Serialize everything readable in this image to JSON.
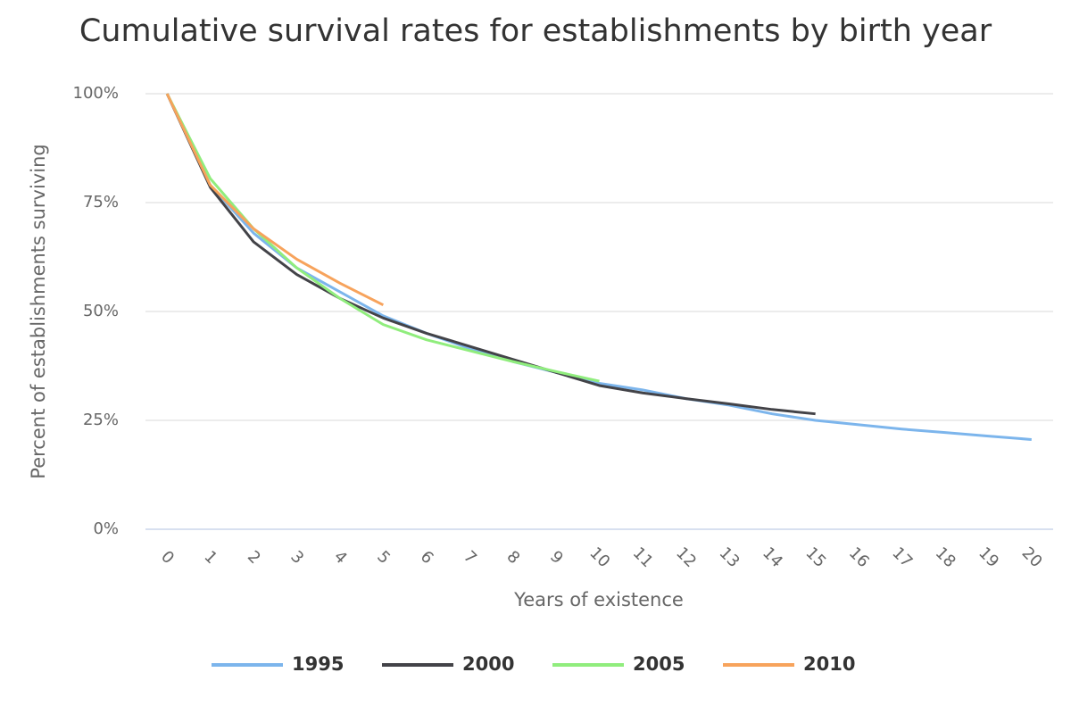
{
  "chart_data": {
    "type": "line",
    "title": "Cumulative survival rates for establishments by birth year",
    "x_label": "Years of existence",
    "y_label": "Percent of establishments surviving",
    "categories": [
      "0",
      "1",
      "2",
      "3",
      "4",
      "5",
      "6",
      "7",
      "8",
      "9",
      "10",
      "11",
      "12",
      "13",
      "14",
      "15",
      "16",
      "17",
      "18",
      "19",
      "20"
    ],
    "ylim": [
      0,
      100
    ],
    "yticks": [
      {
        "value": 0,
        "label": "0%"
      },
      {
        "value": 25,
        "label": "25%"
      },
      {
        "value": 50,
        "label": "50%"
      },
      {
        "value": 75,
        "label": "75%"
      },
      {
        "value": 100,
        "label": "100%"
      }
    ],
    "grid": true,
    "legend": "bottom",
    "series": [
      {
        "name": "1995",
        "color": "#7cb5ec",
        "values": [
          100,
          79,
          68,
          60,
          54.5,
          49,
          45,
          41.5,
          38.5,
          36,
          33.5,
          32,
          30,
          28.5,
          26.5,
          25,
          24,
          23,
          22.2,
          21.4,
          20.6
        ]
      },
      {
        "name": "2000",
        "color": "#434348",
        "values": [
          100,
          78.5,
          66,
          58.5,
          53,
          48.5,
          45,
          42,
          39,
          36,
          33,
          31.3,
          30,
          28.8,
          27.5,
          26.5,
          null,
          null,
          null,
          null,
          null
        ]
      },
      {
        "name": "2005",
        "color": "#90ed7d",
        "values": [
          100,
          80.5,
          69,
          60,
          53,
          47,
          43.5,
          41,
          38.5,
          36.2,
          34,
          null,
          null,
          null,
          null,
          null,
          null,
          null,
          null,
          null,
          null
        ]
      },
      {
        "name": "2010",
        "color": "#f7a35c",
        "values": [
          100,
          79,
          69,
          62,
          56.5,
          51.5,
          null,
          null,
          null,
          null,
          null,
          null,
          null,
          null,
          null,
          null,
          null,
          null,
          null,
          null,
          null
        ]
      }
    ]
  }
}
